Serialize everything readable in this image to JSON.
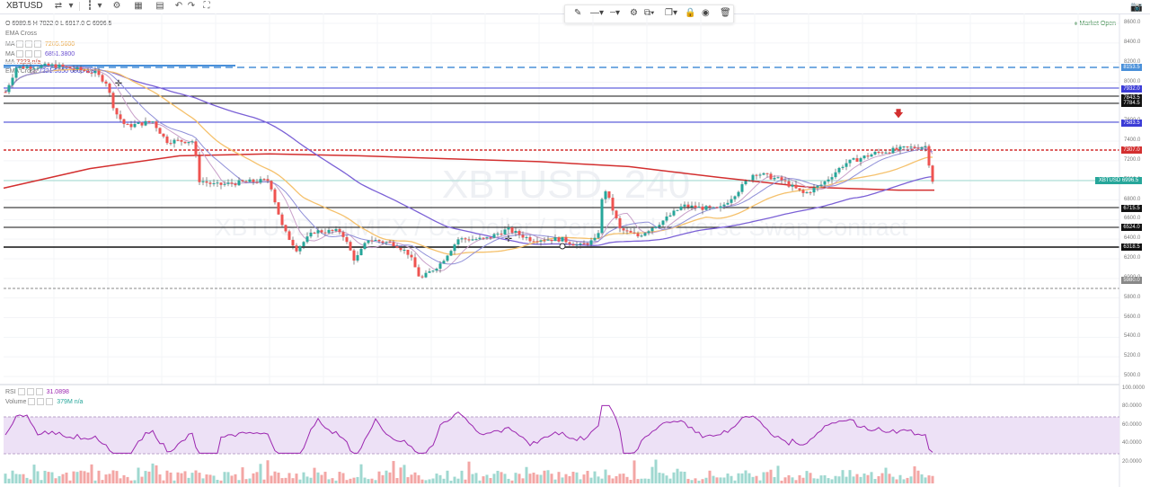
{
  "toolbar": {
    "symbol": "XBTUSD",
    "undo_icon": "↶",
    "redo_icon": "↷",
    "fullscreen_icon": "⛶"
  },
  "ohlc": "O 6989.5 H 7022.0 L 6917.0 C 6996.5",
  "indicators": [
    {
      "name": "EMA Cross",
      "value": ""
    },
    {
      "name": "MA",
      "value": "7205.5600"
    },
    {
      "name": "MA",
      "value": "6851.3800"
    },
    {
      "name": "MA",
      "value": "7223 n/a"
    },
    {
      "name": "EMA Cross",
      "value": "7221.5650 6865 n/a"
    }
  ],
  "market_status": "Market Open",
  "watermark": {
    "symbol": "XBTUSD, 240",
    "subtitle": "XBTUSD, BitMEX / US Dollar / Perpetual Inverse Swap Contract"
  },
  "y_axis": [
    "8600.0",
    "8400.0",
    "8200.0",
    "8000.0",
    "7800.0",
    "7600.0",
    "7400.0",
    "7200.0",
    "7000.0",
    "6800.0",
    "6600.0",
    "6400.0",
    "6200.0",
    "6000.0",
    "5800.0",
    "5600.0",
    "5400.0",
    "5200.0",
    "5000.0"
  ],
  "price_tags": [
    {
      "label": "8153.5",
      "color": "#4a90d9"
    },
    {
      "label": "7932.0",
      "color": "#3b3bd6"
    },
    {
      "label": "7843.5",
      "color": "#111111"
    },
    {
      "label": "7784.5",
      "color": "#111111"
    },
    {
      "label": "7583.5",
      "color": "#3b3bd6"
    },
    {
      "label": "7307.0",
      "color": "#d32f2f"
    },
    {
      "label": "6715.5",
      "color": "#111111"
    },
    {
      "label": "6524.0",
      "color": "#111111"
    },
    {
      "label": "6318.5",
      "color": "#111111"
    },
    {
      "label": "5980.0",
      "color": "#888888"
    }
  ],
  "xbt_tag": "XBTUSD 6996.5",
  "rsi": {
    "label": "RSI",
    "value": "31.0898"
  },
  "volume": {
    "label": "Volume",
    "value": "379M n/a"
  },
  "rsi_axis": [
    "100.0000",
    "80.0000",
    "60.0000",
    "40.0000",
    "20.0000"
  ],
  "colors": {
    "up": "#26a69a",
    "down": "#ef5350",
    "ma_red": "#d32f2f",
    "ma_orange": "#f5c16c",
    "ma_purple": "#7b61d6",
    "rsi_band": "#ede1f6"
  }
}
